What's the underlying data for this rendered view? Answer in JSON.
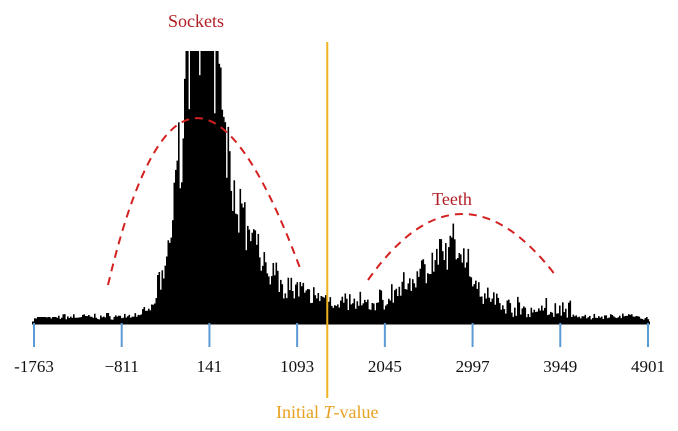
{
  "chart_data": {
    "type": "histogram",
    "title": "",
    "xlabel": "",
    "ylabel": "",
    "x_ticks": [
      -1763,
      -811,
      141,
      1093,
      2045,
      2997,
      3949,
      4901
    ],
    "x_tick_labels": [
      "-1763",
      "−811",
      "141",
      "1093",
      "2045",
      "2997",
      "3949",
      "4901"
    ],
    "xlim": [
      -1763,
      4901
    ],
    "threshold": {
      "label_prefix": "Initial ",
      "label_var": "T",
      "label_suffix": "-value",
      "x": 1420
    },
    "annotations": [
      {
        "label": "Sockets",
        "style": "red dashed arc"
      },
      {
        "label": "Teeth",
        "style": "red dashed arc"
      }
    ],
    "colors": {
      "bars": "#000000",
      "axis_ticks": "#5b9bd5",
      "threshold": "#f0b020",
      "annotation": "#d42020"
    },
    "grid": false,
    "legend": "none"
  }
}
